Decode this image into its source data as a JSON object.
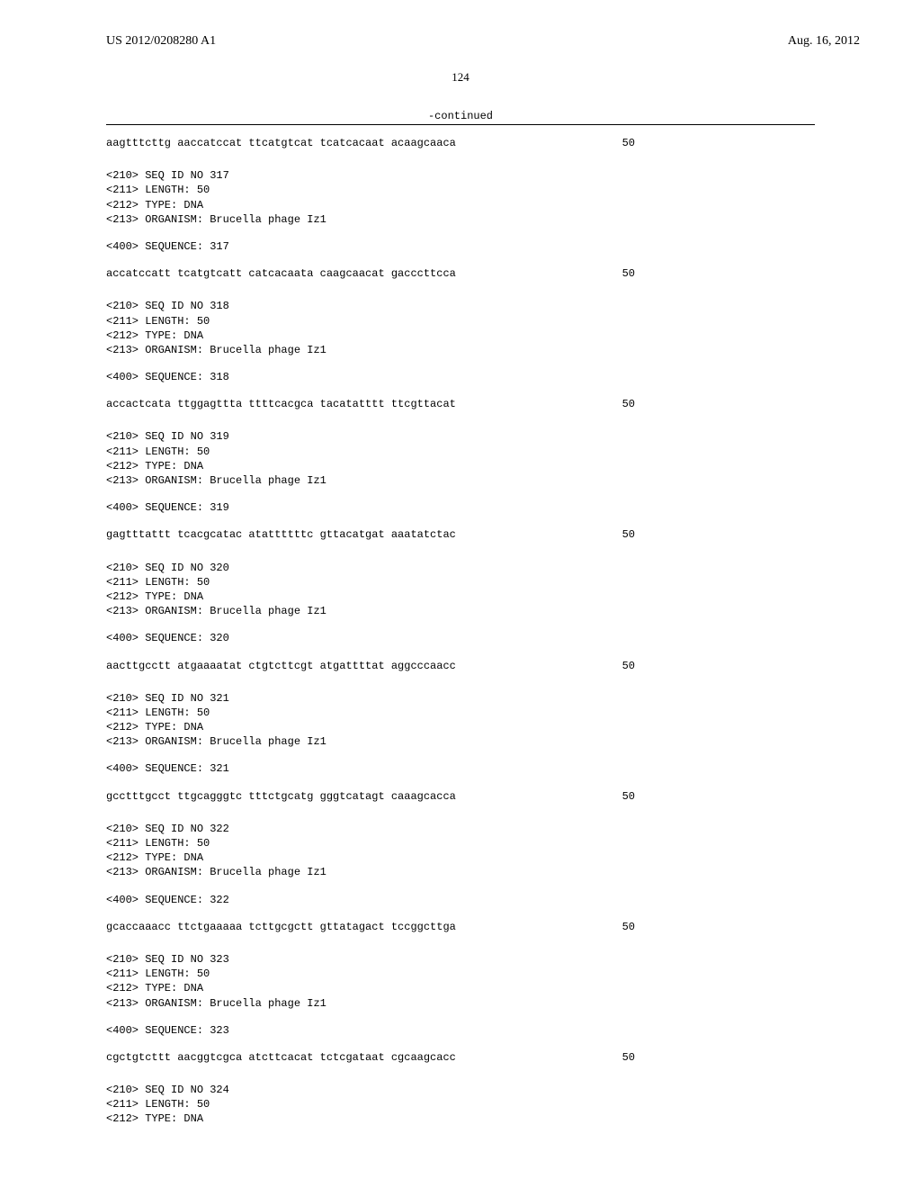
{
  "header": {
    "publication_number": "US 2012/0208280 A1",
    "publication_date": "Aug. 16, 2012"
  },
  "page_number": "124",
  "continued_label": "-continued",
  "sequences": [
    {
      "meta": null,
      "seq_label": null,
      "data": "aagtttcttg aaccatccat ttcatgtcat tcatcacaat acaagcaaca",
      "length": "50"
    },
    {
      "meta": [
        "<210> SEQ ID NO 317",
        "<211> LENGTH: 50",
        "<212> TYPE: DNA",
        "<213> ORGANISM: Brucella phage Iz1"
      ],
      "seq_label": "<400> SEQUENCE: 317",
      "data": "accatccatt tcatgtcatt catcacaata caagcaacat gacccttcca",
      "length": "50"
    },
    {
      "meta": [
        "<210> SEQ ID NO 318",
        "<211> LENGTH: 50",
        "<212> TYPE: DNA",
        "<213> ORGANISM: Brucella phage Iz1"
      ],
      "seq_label": "<400> SEQUENCE: 318",
      "data": "accactcata ttggagttta ttttcacgca tacatatttt ttcgttacat",
      "length": "50"
    },
    {
      "meta": [
        "<210> SEQ ID NO 319",
        "<211> LENGTH: 50",
        "<212> TYPE: DNA",
        "<213> ORGANISM: Brucella phage Iz1"
      ],
      "seq_label": "<400> SEQUENCE: 319",
      "data": "gagtttattt tcacgcatac atattttttc gttacatgat aaatatctac",
      "length": "50"
    },
    {
      "meta": [
        "<210> SEQ ID NO 320",
        "<211> LENGTH: 50",
        "<212> TYPE: DNA",
        "<213> ORGANISM: Brucella phage Iz1"
      ],
      "seq_label": "<400> SEQUENCE: 320",
      "data": "aacttgcctt atgaaaatat ctgtcttcgt atgattttat aggcccaacc",
      "length": "50"
    },
    {
      "meta": [
        "<210> SEQ ID NO 321",
        "<211> LENGTH: 50",
        "<212> TYPE: DNA",
        "<213> ORGANISM: Brucella phage Iz1"
      ],
      "seq_label": "<400> SEQUENCE: 321",
      "data": "gcctttgcct ttgcagggtc tttctgcatg gggtcatagt caaagcacca",
      "length": "50"
    },
    {
      "meta": [
        "<210> SEQ ID NO 322",
        "<211> LENGTH: 50",
        "<212> TYPE: DNA",
        "<213> ORGANISM: Brucella phage Iz1"
      ],
      "seq_label": "<400> SEQUENCE: 322",
      "data": "gcaccaaacc ttctgaaaaa tcttgcgctt gttatagact tccggcttga",
      "length": "50"
    },
    {
      "meta": [
        "<210> SEQ ID NO 323",
        "<211> LENGTH: 50",
        "<212> TYPE: DNA",
        "<213> ORGANISM: Brucella phage Iz1"
      ],
      "seq_label": "<400> SEQUENCE: 323",
      "data": "cgctgtcttt aacggtcgca atcttcacat tctcgataat cgcaagcacc",
      "length": "50"
    },
    {
      "meta": [
        "<210> SEQ ID NO 324",
        "<211> LENGTH: 50",
        "<212> TYPE: DNA"
      ],
      "seq_label": null,
      "data": null,
      "length": null
    }
  ]
}
